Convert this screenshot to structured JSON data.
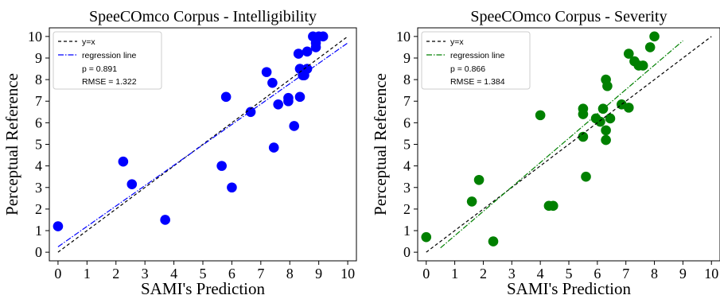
{
  "chart_data": [
    {
      "type": "scatter",
      "title": "SpeeCOmco Corpus - Intelligibility",
      "xlabel": "SAMI's Prediction",
      "ylabel": "Perceptual Reference",
      "xlim": [
        -0.3,
        10.3
      ],
      "ylim": [
        -0.4,
        10.4
      ],
      "xticks": [
        0,
        1,
        2,
        3,
        4,
        5,
        6,
        7,
        8,
        9,
        10
      ],
      "yticks": [
        0,
        1,
        2,
        3,
        4,
        5,
        6,
        7,
        8,
        9,
        10
      ],
      "legend_position": "top-left",
      "marker_color": "#0000ff",
      "points": [
        [
          0.0,
          1.2
        ],
        [
          2.25,
          4.2
        ],
        [
          2.55,
          3.15
        ],
        [
          3.7,
          1.5
        ],
        [
          5.65,
          4.0
        ],
        [
          5.8,
          7.2
        ],
        [
          6.0,
          3.0
        ],
        [
          6.65,
          6.5
        ],
        [
          7.2,
          8.35
        ],
        [
          7.4,
          7.85
        ],
        [
          7.45,
          4.85
        ],
        [
          7.6,
          6.85
        ],
        [
          7.95,
          7.0
        ],
        [
          7.95,
          7.15
        ],
        [
          8.15,
          5.85
        ],
        [
          8.3,
          9.2
        ],
        [
          8.35,
          7.2
        ],
        [
          8.35,
          8.5
        ],
        [
          8.45,
          8.2
        ],
        [
          8.5,
          8.2
        ],
        [
          8.6,
          8.5
        ],
        [
          8.6,
          9.3
        ],
        [
          8.8,
          10.0
        ],
        [
          8.9,
          9.5
        ],
        [
          8.9,
          9.7
        ],
        [
          9.0,
          10.0
        ],
        [
          9.15,
          10.0
        ]
      ],
      "series": [
        {
          "name": "y=x",
          "style": "dashed",
          "color": "#000000",
          "x": [
            0,
            10
          ],
          "y": [
            0,
            10
          ]
        },
        {
          "name": "regression line",
          "style": "dashdot",
          "color": "#0000ff",
          "x": [
            0,
            10
          ],
          "y": [
            0.25,
            9.7
          ]
        }
      ],
      "stats": {
        "p": "p = 0.891",
        "rmse": "RMSE = 1.322"
      }
    },
    {
      "type": "scatter",
      "title": "SpeeCOmco Corpus - Severity",
      "xlabel": "SAMI's Prediction",
      "ylabel": "Perceptual Reference",
      "xlim": [
        -0.3,
        10.3
      ],
      "ylim": [
        -0.4,
        10.4
      ],
      "xticks": [
        0,
        1,
        2,
        3,
        4,
        5,
        6,
        7,
        8,
        9,
        10
      ],
      "yticks": [
        0,
        1,
        2,
        3,
        4,
        5,
        6,
        7,
        8,
        9,
        10
      ],
      "legend_position": "top-left",
      "marker_color": "#008000",
      "points": [
        [
          0.0,
          0.7
        ],
        [
          1.6,
          2.35
        ],
        [
          1.85,
          3.35
        ],
        [
          2.35,
          0.5
        ],
        [
          4.0,
          6.35
        ],
        [
          4.3,
          2.15
        ],
        [
          4.45,
          2.15
        ],
        [
          5.5,
          5.35
        ],
        [
          5.5,
          6.4
        ],
        [
          5.5,
          6.65
        ],
        [
          5.6,
          3.5
        ],
        [
          5.95,
          6.2
        ],
        [
          6.1,
          6.05
        ],
        [
          6.2,
          6.65
        ],
        [
          6.3,
          5.2
        ],
        [
          6.3,
          5.65
        ],
        [
          6.3,
          8.0
        ],
        [
          6.35,
          7.7
        ],
        [
          6.45,
          6.2
        ],
        [
          6.85,
          6.85
        ],
        [
          7.1,
          6.7
        ],
        [
          7.1,
          9.2
        ],
        [
          7.3,
          8.85
        ],
        [
          7.45,
          8.65
        ],
        [
          7.6,
          8.65
        ],
        [
          7.85,
          9.5
        ],
        [
          8.0,
          10.0
        ]
      ],
      "series": [
        {
          "name": "y=x",
          "style": "dashed",
          "color": "#000000",
          "x": [
            0,
            10
          ],
          "y": [
            0,
            10
          ]
        },
        {
          "name": "regression line",
          "style": "dashdot",
          "color": "#008000",
          "x": [
            0.5,
            9.0
          ],
          "y": [
            0.2,
            9.8
          ]
        }
      ],
      "stats": {
        "p": "p = 0.866",
        "rmse": "RMSE = 1.384"
      }
    }
  ]
}
